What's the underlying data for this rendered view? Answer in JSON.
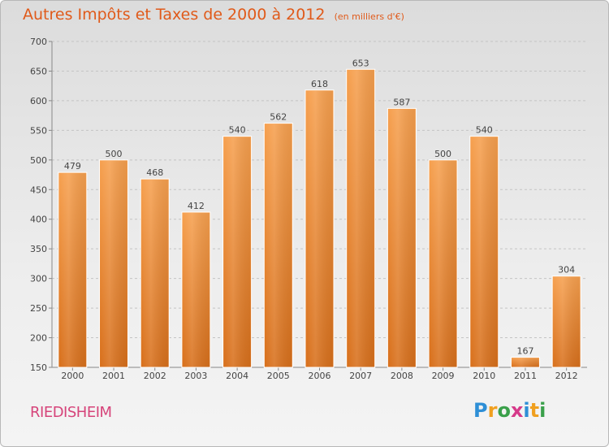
{
  "title": "Autres Impôts et Taxes de 2000 à 2012",
  "unit_label": "(en milliers d'€)",
  "location": "RIEDISHEIM",
  "logo": {
    "letters": [
      "P",
      "r",
      "o",
      "x",
      "i",
      "t",
      "i"
    ],
    "colors": [
      "#2e8fd6",
      "#f0a020",
      "#3aa04a",
      "#d63a8a",
      "#2e8fd6",
      "#f0a020",
      "#3aa04a"
    ]
  },
  "colors": {
    "bar_top": "#f6a04f",
    "bar_bottom": "#d8701c",
    "title": "#e05a1a",
    "location": "#d6447a"
  },
  "chart_data": {
    "type": "bar",
    "categories": [
      "2000",
      "2001",
      "2002",
      "2003",
      "2004",
      "2005",
      "2006",
      "2007",
      "2008",
      "2009",
      "2010",
      "2011",
      "2012"
    ],
    "values": [
      479,
      500,
      468,
      412,
      540,
      562,
      618,
      653,
      587,
      500,
      540,
      167,
      304
    ],
    "ylim": [
      150,
      700
    ],
    "yticks": [
      150,
      200,
      250,
      300,
      350,
      400,
      450,
      500,
      550,
      600,
      650,
      700
    ],
    "grid": true
  }
}
